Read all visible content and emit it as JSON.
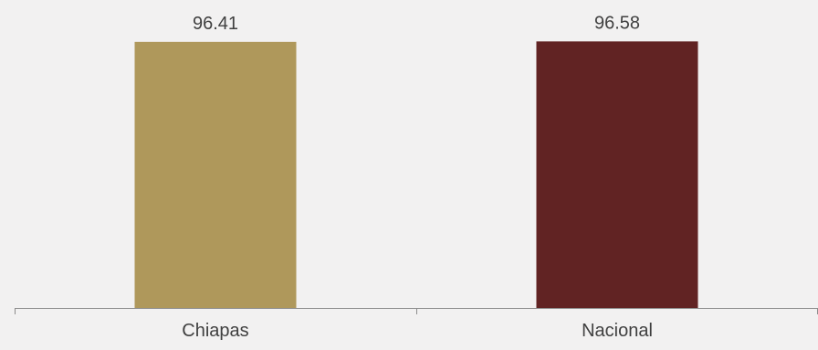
{
  "chart_data": {
    "type": "bar",
    "categories": [
      "Chiapas",
      "Nacional"
    ],
    "values": [
      96.41,
      96.58
    ],
    "data_labels": [
      "96.41",
      "96.58"
    ],
    "colors": [
      "#af985b",
      "#612323"
    ],
    "title": "",
    "xlabel": "",
    "ylabel": "",
    "ylim": [
      0,
      100
    ],
    "grid": false,
    "legend": "none"
  }
}
